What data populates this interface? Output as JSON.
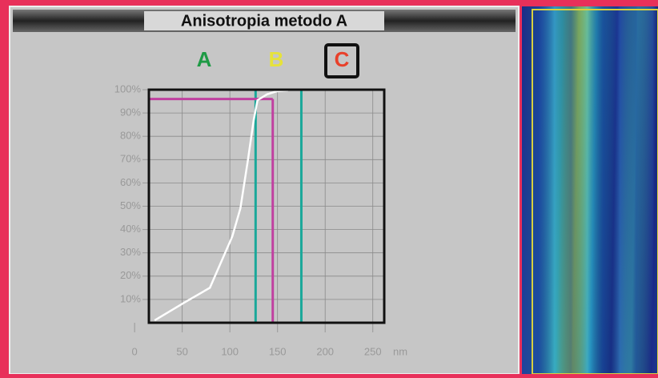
{
  "chart_data": {
    "type": "line",
    "title": "Anisotropia metodo A",
    "labels": [
      {
        "text": "A",
        "color": "#1e9a45"
      },
      {
        "text": "B",
        "color": "#e6e23a"
      },
      {
        "text": "C",
        "color": "#e8402a"
      }
    ],
    "x_label": "nm",
    "series": [
      {
        "color": "#ffffff",
        "x": [
          21,
          52,
          79,
          102.5,
          111,
          119,
          125,
          129,
          139,
          149,
          161
        ],
        "values": [
          1,
          8.6,
          15,
          37,
          49,
          70,
          87,
          95.5,
          98,
          99.3,
          99.7
        ]
      }
    ],
    "vlines": [
      {
        "x": 127,
        "color": "#1aa89a"
      },
      {
        "x": 175,
        "color": "#1aa89a"
      }
    ],
    "reference": {
      "x": 145,
      "y": 96,
      "color": "#c040a0"
    },
    "xlim": [
      15,
      262
    ],
    "ylim": [
      0,
      100
    ],
    "xticks": [
      0,
      50,
      100,
      150,
      200,
      250
    ],
    "yticks": [
      {
        "value": 10,
        "label": "10%"
      },
      {
        "value": 20,
        "label": "20%"
      },
      {
        "value": 30,
        "label": "30%"
      },
      {
        "value": 40,
        "label": "40%"
      },
      {
        "value": 50,
        "label": "50%"
      },
      {
        "value": 60,
        "label": "60%"
      },
      {
        "value": 70,
        "label": "70%"
      },
      {
        "value": 80,
        "label": "80%"
      },
      {
        "value": 90,
        "label": "90%"
      },
      {
        "value": 100,
        "label": "100%"
      }
    ],
    "grid": true
  }
}
